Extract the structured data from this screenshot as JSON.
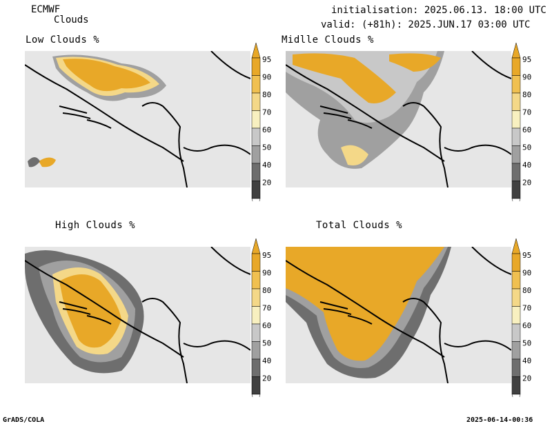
{
  "header": {
    "model": "ECMWF",
    "parameter": "Clouds",
    "init_line": "initialisation: 2025.06.13. 18:00 UTC",
    "valid_line": "valid: (+81h): 2025.JUN.17 03:00 UTC"
  },
  "panels": [
    {
      "id": "low",
      "title": "Low Clouds %"
    },
    {
      "id": "middle",
      "title": "Midlle Clouds %"
    },
    {
      "id": "high",
      "title": "High Clouds %"
    },
    {
      "id": "total",
      "title": "Total Clouds %"
    }
  ],
  "colorbar": {
    "labels": [
      "95",
      "90",
      "80",
      "70",
      "60",
      "50",
      "40",
      "20"
    ],
    "colors": {
      "c95": "#e8a828",
      "c90": "#f0c050",
      "c80": "#f4d888",
      "c70": "#f8f0c0",
      "c60": "#c8c8c8",
      "c50": "#a0a0a0",
      "c40": "#6e6e6e",
      "c20": "#404040",
      "below": "#ffffff",
      "background": "#e6e6e6"
    }
  },
  "footer": {
    "left": "GrADS/COLA",
    "right": "2025-06-14-00:36"
  }
}
